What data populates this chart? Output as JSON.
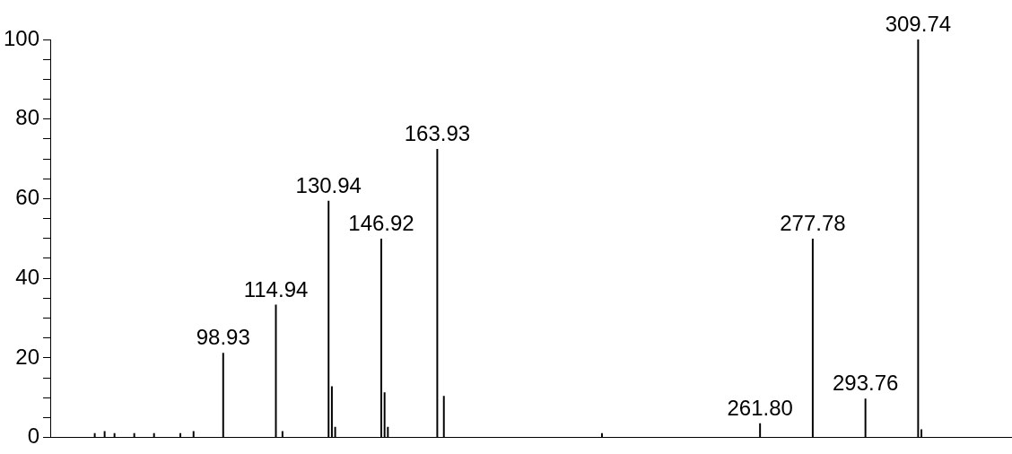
{
  "chart_data": {
    "type": "bar",
    "color": "#000000",
    "categories": [
      null,
      null,
      null,
      null,
      null,
      null,
      null,
      null,
      null,
      null,
      null,
      null,
      null,
      null,
      null,
      null,
      null,
      null,
      null,
      null,
      null,
      null,
      null,
      null,
      null,
      null,
      null,
      null,
      null,
      null,
      null,
      null,
      null,
      null,
      null,
      null,
      null,
      null,
      null,
      null,
      null,
      null,
      null,
      null,
      null,
      null,
      null,
      null,
      null,
      null,
      null,
      null,
      null,
      null,
      null,
      null,
      null,
      null,
      null,
      null,
      null,
      null,
      null,
      null,
      null,
      null,
      null,
      null,
      null,
      null,
      null,
      null,
      null,
      null,
      null,
      null,
      null,
      null,
      null,
      null,
      null,
      null,
      null,
      null,
      null,
      null,
      null,
      null,
      null,
      null,
      null,
      null,
      null,
      null,
      null,
      null,
      null,
      null,
      null,
      null,
      null,
      null,
      null,
      null,
      null,
      null,
      null,
      null,
      null,
      null,
      null,
      null,
      null,
      null,
      null,
      null,
      null,
      null,
      null,
      null,
      null,
      null,
      null,
      null,
      null,
      null,
      null,
      null,
      null,
      null,
      null,
      null,
      null,
      null,
      null,
      null,
      null,
      null,
      null,
      null,
      null,
      null,
      null,
      null,
      null,
      null,
      null,
      null,
      null,
      null,
      null,
      null,
      null,
      null,
      null,
      null,
      null,
      null,
      null,
      null,
      null,
      null,
      null,
      null,
      null,
      null,
      null,
      null,
      null,
      null,
      null,
      null,
      null,
      null,
      null,
      null,
      null,
      null,
      null,
      null,
      null,
      null,
      null,
      null,
      null,
      null,
      null,
      null,
      null,
      null,
      null,
      null,
      null,
      null,
      null,
      null,
      null,
      null,
      null,
      null,
      null,
      null,
      null,
      null,
      null,
      null,
      null,
      null,
      null,
      null,
      null,
      null,
      null,
      null,
      null,
      null,
      null,
      null,
      null,
      null,
      null,
      null,
      null,
      null,
      null,
      null,
      null,
      null,
      null,
      null,
      null,
      null,
      null,
      null,
      null,
      null,
      null,
      null,
      null,
      null,
      null,
      null,
      null,
      null,
      null,
      null,
      null,
      null,
      null,
      null,
      null,
      null,
      null,
      null,
      null,
      null,
      null,
      null,
      null,
      null,
      null,
      null,
      null,
      null,
      null,
      null,
      null,
      null,
      null,
      null,
      null,
      null,
      null,
      null,
      null,
      null,
      null,
      null,
      null,
      null,
      null,
      null,
      null,
      null,
      null,
      null,
      null,
      null,
      null,
      null,
      null,
      null
    ],
    "values": [
      null,
      null,
      null,
      null,
      null,
      null,
      null,
      null,
      null,
      null,
      null,
      null,
      null,
      1,
      null,
      null,
      1.5,
      null,
      null,
      1,
      null,
      null,
      null,
      null,
      null,
      1,
      null,
      null,
      null,
      null,
      null,
      1,
      null,
      null,
      null,
      null,
      null,
      null,
      null,
      1,
      null,
      null,
      null,
      1.5,
      null,
      null,
      null,
      null,
      null,
      null,
      null,
      null,
      21.2,
      null,
      null,
      null,
      null,
      null,
      null,
      null,
      null,
      null,
      null,
      null,
      null,
      null,
      null,
      null,
      33.3,
      null,
      1.5,
      null,
      null,
      null,
      null,
      null,
      null,
      null,
      null,
      null,
      null,
      null,
      null,
      null,
      59.4,
      12.8,
      2.6,
      null,
      null,
      null,
      null,
      null,
      null,
      null,
      null,
      null,
      null,
      null,
      null,
      null,
      49.9,
      11.3,
      2.6,
      null,
      null,
      null,
      null,
      null,
      null,
      null,
      null,
      null,
      null,
      null,
      null,
      null,
      null,
      72.4,
      null,
      10.4,
      null,
      null,
      null,
      null,
      null,
      null,
      null,
      null,
      null,
      null,
      null,
      null,
      null,
      null,
      null,
      null,
      null,
      null,
      null,
      null,
      null,
      null,
      null,
      null,
      null,
      null,
      null,
      null,
      null,
      null,
      null,
      null,
      null,
      null,
      null,
      null,
      null,
      null,
      null,
      null,
      null,
      null,
      null,
      null,
      null,
      null,
      null,
      1,
      null,
      null,
      null,
      null,
      null,
      null,
      null,
      null,
      null,
      null,
      null,
      null,
      null,
      null,
      null,
      null,
      null,
      null,
      null,
      null,
      null,
      null,
      null,
      null,
      null,
      null,
      null,
      null,
      null,
      null,
      null,
      null,
      null,
      null,
      null,
      null,
      null,
      null,
      null,
      null,
      null,
      null,
      null,
      null,
      null,
      null,
      null,
      3.5,
      null,
      null,
      null,
      null,
      null,
      null,
      null,
      null,
      null,
      null,
      null,
      null,
      null,
      null,
      null,
      49.9,
      null,
      null,
      null,
      null,
      null,
      null,
      null,
      null,
      null,
      null,
      null,
      null,
      null,
      null,
      null,
      9.7,
      null,
      null,
      null,
      null,
      null,
      null,
      null,
      null,
      null,
      null,
      null,
      null,
      null,
      null,
      null,
      100,
      2,
      null,
      null,
      null,
      null,
      null,
      null,
      null,
      null,
      null,
      null,
      null,
      null,
      null,
      null,
      null,
      null,
      null,
      null,
      null,
      null,
      null,
      null,
      null,
      null,
      null,
      null,
      null
    ],
    "annotations": [
      {
        "text": "98.93",
        "y": 21.2
      },
      {
        "text": "114.94",
        "y": 33.3
      },
      {
        "text": "130.94",
        "y": 59.4
      },
      {
        "text": "146.92",
        "y": 49.9
      },
      {
        "text": "163.93",
        "y": 72.4
      },
      {
        "text": "261.80",
        "y": 3.5
      },
      {
        "text": "277.78",
        "y": 49.9
      },
      {
        "text": "293.76",
        "y": 9.7
      },
      {
        "text": "309.74",
        "y": 100
      }
    ],
    "ylim": [
      0,
      100
    ],
    "yticks": [
      0,
      {
        "value": 5,
        "label": null
      },
      {
        "value": 10,
        "label": null
      },
      {
        "value": 15,
        "label": null
      },
      20,
      {
        "value": 25,
        "label": null
      },
      {
        "value": 30,
        "label": null
      },
      {
        "value": 35,
        "label": null
      },
      40,
      {
        "value": 45,
        "label": null
      },
      {
        "value": 50,
        "label": null
      },
      {
        "value": 55,
        "label": null
      },
      60,
      {
        "value": 65,
        "label": null
      },
      {
        "value": 70,
        "label": null
      },
      {
        "value": 75,
        "label": null
      },
      80,
      {
        "value": 85,
        "label": null
      },
      {
        "value": 90,
        "label": null
      },
      {
        "value": 95,
        "label": null
      },
      100
    ],
    "tick_labels": "y"
  }
}
